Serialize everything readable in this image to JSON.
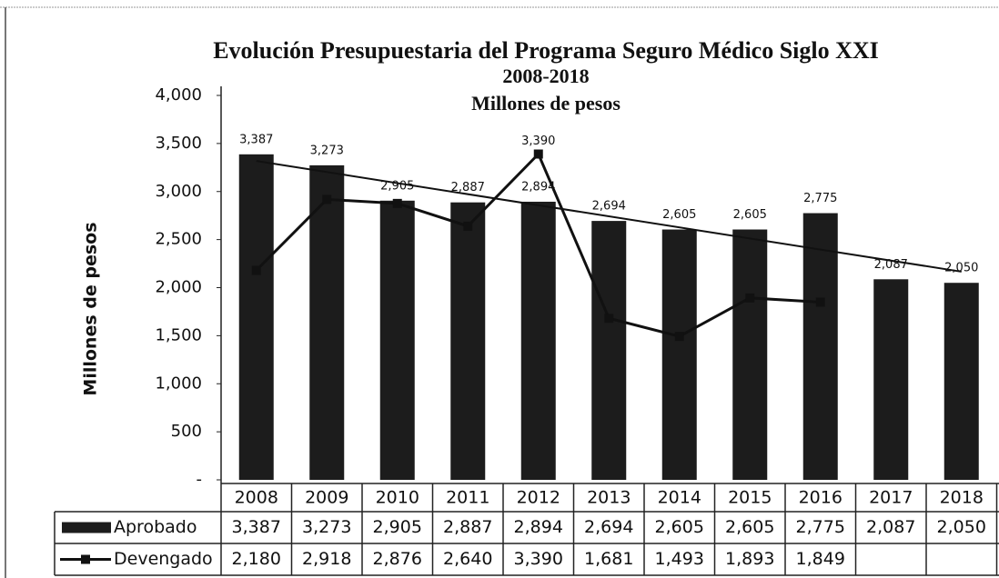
{
  "chart_data": {
    "type": "bar_line",
    "title": "Evolución Presupuestaria del Programa Seguro Médico Siglo XXI",
    "subtitle": "2008-2018",
    "annotation": "Millones de pesos",
    "y_label": "Millones de pesos",
    "categories": [
      "2008",
      "2009",
      "2010",
      "2011",
      "2012",
      "2013",
      "2014",
      "2015",
      "2016",
      "2017",
      "2018"
    ],
    "series": [
      {
        "name": "Aprobado",
        "type": "bar",
        "color": "#1c1c1c",
        "values": [
          3387,
          3273,
          2905,
          2887,
          2894,
          2694,
          2605,
          2605,
          2775,
          2087,
          2050
        ],
        "value_labels": [
          "3,387",
          "3,273",
          "2,905",
          "2,887",
          "2,894",
          "2,694",
          "2,605",
          "2,605",
          "2,775",
          "2,087",
          "2,050"
        ],
        "trendline": "linear"
      },
      {
        "name": "Devengado",
        "type": "line",
        "color": "#111111",
        "values": [
          2180,
          2918,
          2876,
          2640,
          3390,
          1681,
          1493,
          1893,
          1849,
          null,
          null
        ],
        "value_labels": [
          "2,180",
          "2,918",
          "2,876",
          "2,640",
          "3,390",
          "1,681",
          "1,493",
          "1,893",
          "1,849",
          null,
          null
        ]
      }
    ],
    "ylim": [
      0,
      4000
    ],
    "yticks": [
      {
        "value": 0,
        "label": "-"
      },
      500,
      {
        "value": 1000,
        "label": "1,000"
      },
      {
        "value": 1500,
        "label": "1,500"
      },
      {
        "value": 2000,
        "label": "2,000"
      },
      {
        "value": 2500,
        "label": "2,500"
      },
      {
        "value": 3000,
        "label": "3,000"
      },
      {
        "value": 3500,
        "label": "3,500"
      },
      {
        "value": 4000,
        "label": "4,000"
      }
    ],
    "grid": false,
    "data_table": true
  }
}
